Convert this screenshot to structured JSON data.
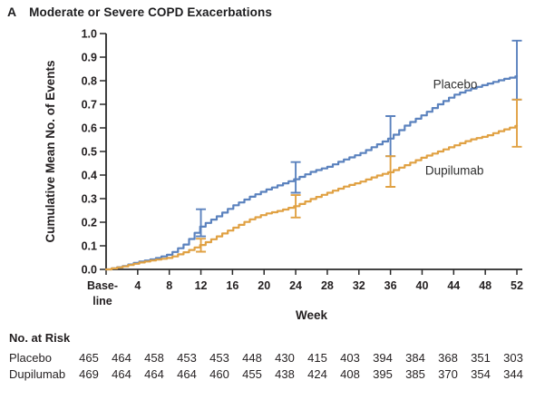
{
  "panel": {
    "label": "A",
    "title": "Moderate or Severe COPD Exacerbations"
  },
  "colors": {
    "placebo": "#5b82be",
    "dupilumab": "#e0a143",
    "axis": "#2a2a2a",
    "text": "#231f20"
  },
  "chart_data": {
    "type": "line",
    "title": "Moderate or Severe COPD Exacerbations",
    "xlabel": "Week",
    "ylabel": "Cumulative Mean No. of Events",
    "ylim": [
      0.0,
      1.0
    ],
    "xlim_weeks": [
      0,
      52
    ],
    "grid": false,
    "y_ticks": [
      "0.0",
      "0.1",
      "0.2",
      "0.3",
      "0.4",
      "0.5",
      "0.6",
      "0.7",
      "0.8",
      "0.9",
      "1.0"
    ],
    "x_ticks": [
      {
        "week": 0,
        "label_lines": [
          "Base-",
          "line"
        ]
      },
      {
        "week": 4,
        "label_lines": [
          "4"
        ]
      },
      {
        "week": 8,
        "label_lines": [
          "8"
        ]
      },
      {
        "week": 12,
        "label_lines": [
          "12"
        ]
      },
      {
        "week": 16,
        "label_lines": [
          "16"
        ]
      },
      {
        "week": 20,
        "label_lines": [
          "20"
        ]
      },
      {
        "week": 24,
        "label_lines": [
          "24"
        ]
      },
      {
        "week": 28,
        "label_lines": [
          "28"
        ]
      },
      {
        "week": 32,
        "label_lines": [
          "32"
        ]
      },
      {
        "week": 36,
        "label_lines": [
          "36"
        ]
      },
      {
        "week": 40,
        "label_lines": [
          "40"
        ]
      },
      {
        "week": 44,
        "label_lines": [
          "44"
        ]
      },
      {
        "week": 48,
        "label_lines": [
          "48"
        ]
      },
      {
        "week": 52,
        "label_lines": [
          "52"
        ]
      }
    ],
    "series": [
      {
        "name": "Placebo",
        "color": "#5b82be",
        "x": [
          0,
          2,
          4,
          6,
          8,
          10,
          12,
          14,
          16,
          18,
          20,
          22,
          24,
          26,
          28,
          30,
          32,
          34,
          36,
          38,
          40,
          42,
          44,
          46,
          48,
          50,
          52
        ],
        "y": [
          0,
          0.013,
          0.032,
          0.045,
          0.065,
          0.11,
          0.185,
          0.225,
          0.27,
          0.305,
          0.335,
          0.36,
          0.385,
          0.415,
          0.435,
          0.465,
          0.49,
          0.525,
          0.56,
          0.615,
          0.655,
          0.7,
          0.74,
          0.765,
          0.785,
          0.805,
          0.82
        ],
        "error_bars": [
          {
            "week": 12,
            "low": 0.14,
            "high": 0.255
          },
          {
            "week": 24,
            "low": 0.325,
            "high": 0.455
          },
          {
            "week": 36,
            "low": 0.48,
            "high": 0.65
          },
          {
            "week": 52,
            "low": 0.72,
            "high": 0.97
          }
        ],
        "label": {
          "text": "Placebo",
          "week": 44.2,
          "value": 0.785
        }
      },
      {
        "name": "Dupilumab",
        "color": "#e0a143",
        "x": [
          0,
          2,
          4,
          6,
          8,
          10,
          12,
          14,
          16,
          18,
          20,
          22,
          24,
          26,
          28,
          30,
          32,
          34,
          36,
          38,
          40,
          42,
          44,
          46,
          48,
          50,
          52
        ],
        "y": [
          0,
          0.012,
          0.028,
          0.04,
          0.05,
          0.075,
          0.105,
          0.14,
          0.175,
          0.21,
          0.235,
          0.25,
          0.27,
          0.3,
          0.325,
          0.35,
          0.37,
          0.395,
          0.415,
          0.445,
          0.475,
          0.5,
          0.525,
          0.55,
          0.565,
          0.59,
          0.61
        ],
        "error_bars": [
          {
            "week": 12,
            "low": 0.075,
            "high": 0.13
          },
          {
            "week": 24,
            "low": 0.22,
            "high": 0.315
          },
          {
            "week": 36,
            "low": 0.35,
            "high": 0.48
          },
          {
            "week": 52,
            "low": 0.52,
            "high": 0.72
          }
        ],
        "label": {
          "text": "Dupilumab",
          "week": 44.1,
          "value": 0.419
        }
      }
    ]
  },
  "risk_table": {
    "heading": "No. at Risk",
    "rows": [
      {
        "label": "Placebo",
        "values": [
          465,
          464,
          458,
          453,
          453,
          448,
          430,
          415,
          403,
          394,
          384,
          368,
          351,
          303
        ]
      },
      {
        "label": "Dupilumab",
        "values": [
          469,
          464,
          464,
          464,
          460,
          455,
          438,
          424,
          408,
          395,
          385,
          370,
          354,
          344
        ]
      }
    ]
  }
}
